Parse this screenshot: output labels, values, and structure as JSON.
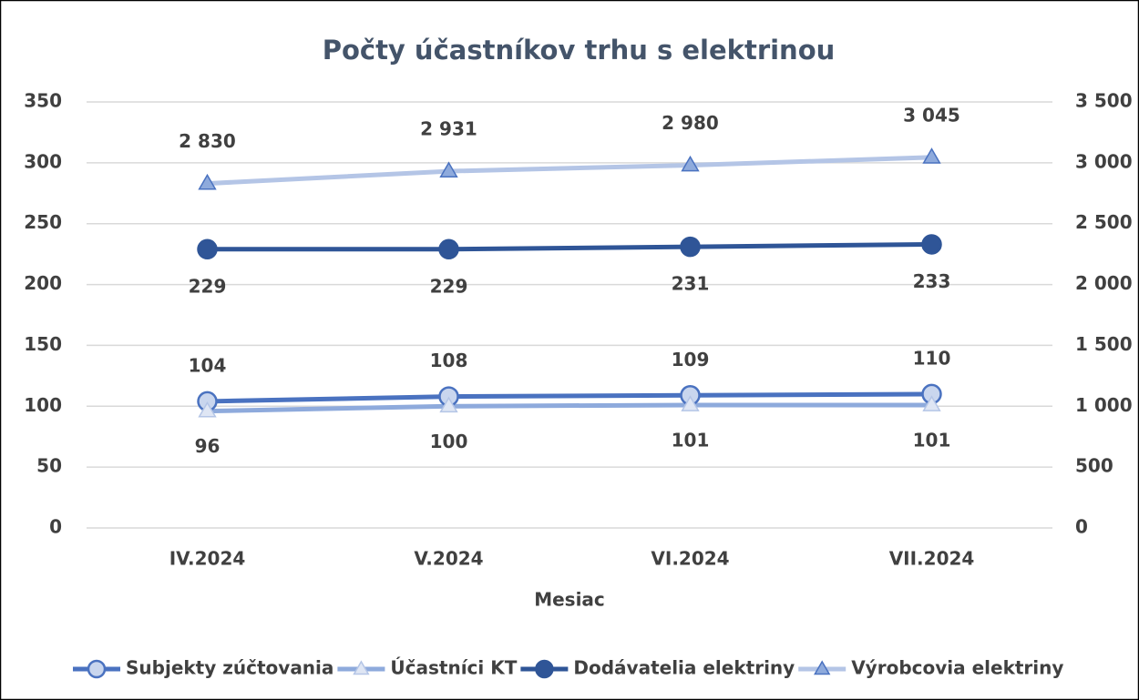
{
  "chart_data": {
    "type": "line",
    "title": "Počty účastníkov trhu s elektrinou",
    "x_label": "Mesiac",
    "categories": [
      "IV.2024",
      "V.2024",
      "VI.2024",
      "VII.2024"
    ],
    "ylim": [
      0,
      350
    ],
    "yticks": [
      0,
      50,
      100,
      150,
      200,
      250,
      300,
      350
    ],
    "y2lim": [
      0,
      3500
    ],
    "y2ticks": [
      0,
      500,
      {
        "value": 1000,
        "label": "1 000"
      },
      {
        "value": 1500,
        "label": "1 500"
      },
      {
        "value": 2000,
        "label": "2 000"
      },
      {
        "value": 2500,
        "label": "2 500"
      },
      {
        "value": 3000,
        "label": "3 000"
      },
      {
        "value": 3500,
        "label": "3 500"
      }
    ],
    "grid": true,
    "legend": "bottom",
    "series": [
      {
        "name": "Subjekty zúčtovania",
        "color": "#4a72c0",
        "marker": "circle",
        "marker_fill": "#c9d6ee",
        "values": [
          104,
          108,
          109,
          110
        ]
      },
      {
        "name": "Účastníci KT",
        "color": "#8eaadc",
        "marker": "triangle",
        "marker_fill": "#dfe6f4",
        "values": [
          96,
          100,
          101,
          101
        ]
      },
      {
        "name": "Dodávatelia elektriny",
        "color": "#2f5597",
        "marker": "circle",
        "marker_fill": "#2f5597",
        "values": [
          229,
          229,
          231,
          233
        ]
      },
      {
        "name": "Výrobcovia elektriny",
        "color": "#b4c5e6",
        "marker": "triangle",
        "marker_fill": "#8eaadc",
        "axis": "y2",
        "values": [
          2830,
          2931,
          2980,
          3045
        ],
        "value_labels": [
          "2 830",
          "2 931",
          "2 980",
          "3 045"
        ]
      }
    ]
  }
}
